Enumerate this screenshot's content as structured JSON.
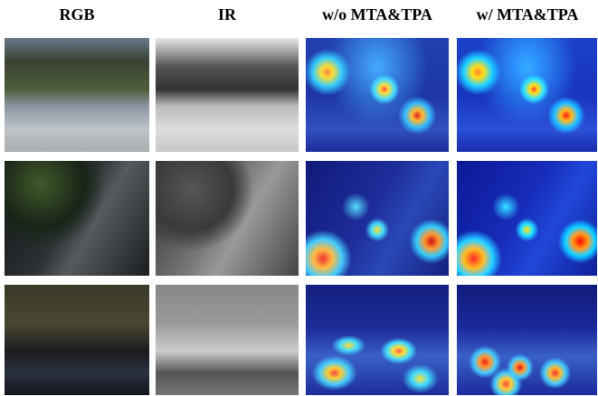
{
  "columns": [
    "RGB",
    "IR",
    "w/o MTA&TPA",
    "w/ MTA&TPA"
  ]
}
